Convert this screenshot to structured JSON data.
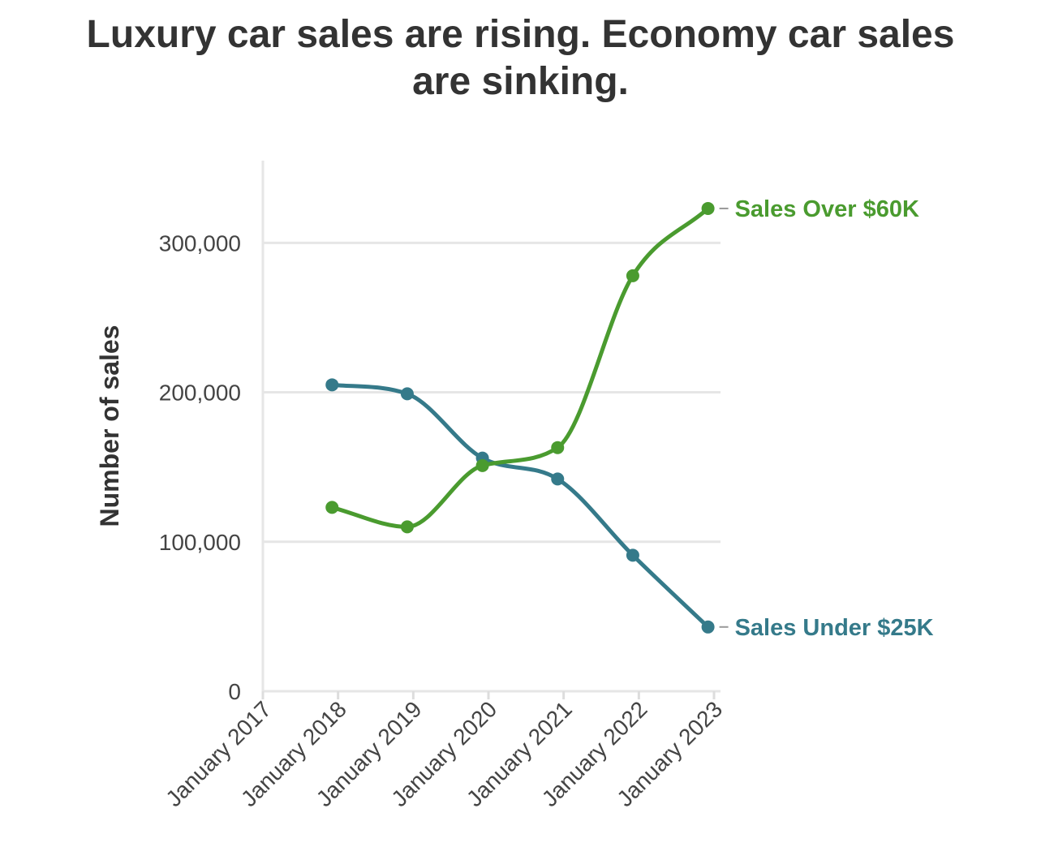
{
  "chart_data": {
    "type": "line",
    "title": "Luxury car sales are rising. Economy car sales are sinking.",
    "ylabel": "Number of sales",
    "xlabel": "",
    "ylim": [
      0,
      355000
    ],
    "y_ticks": [
      0,
      100000,
      200000,
      300000
    ],
    "y_tick_labels": [
      "0",
      "100,000",
      "200,000",
      "300,000"
    ],
    "x_ticks": [
      2017,
      2018,
      2019,
      2020,
      2021,
      2022,
      2023
    ],
    "x_tick_labels": [
      "January 2017",
      "January 2018",
      "January 2019",
      "January 2020",
      "January 2021",
      "January 2022",
      "January 2023"
    ],
    "grid": "horizontal",
    "legend": "direct-labels-right",
    "series": [
      {
        "name": "Sales Over $60K",
        "color": "#4a9b2f",
        "x": [
          2017.92,
          2018.92,
          2019.92,
          2020.92,
          2021.92,
          2022.92
        ],
        "values": [
          123000,
          110000,
          151000,
          163000,
          278000,
          323000
        ]
      },
      {
        "name": "Sales Under $25K",
        "color": "#357a8a",
        "x": [
          2017.92,
          2018.92,
          2019.92,
          2020.92,
          2021.92,
          2022.92
        ],
        "values": [
          205000,
          199000,
          156000,
          142000,
          91000,
          43000
        ]
      }
    ]
  }
}
